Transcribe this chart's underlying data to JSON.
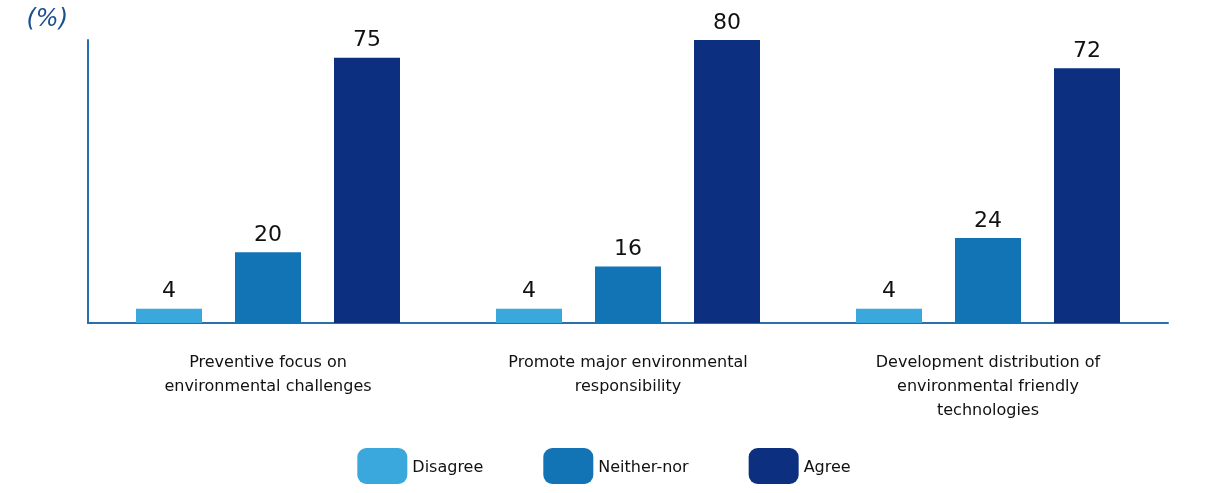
{
  "chart_data": {
    "type": "bar",
    "ylabel": "(%)",
    "categories": [
      "Preventive focus on\nenvironmental challenges",
      "Promote major environmental\nresponsibility",
      "Development distribution of\nenvironmental friendly\ntechnologies"
    ],
    "series": [
      {
        "name": "Disagree",
        "color": "#3aa8dc",
        "values": [
          4,
          4,
          4
        ]
      },
      {
        "name": "Neither-nor",
        "color": "#1273b5",
        "values": [
          20,
          16,
          24
        ]
      },
      {
        "name": "Agree",
        "color": "#0d2f80",
        "values": [
          75,
          80,
          72
        ]
      }
    ],
    "data_labels": true,
    "tick_labels": "x",
    "grid": false,
    "legend": "bottom"
  }
}
